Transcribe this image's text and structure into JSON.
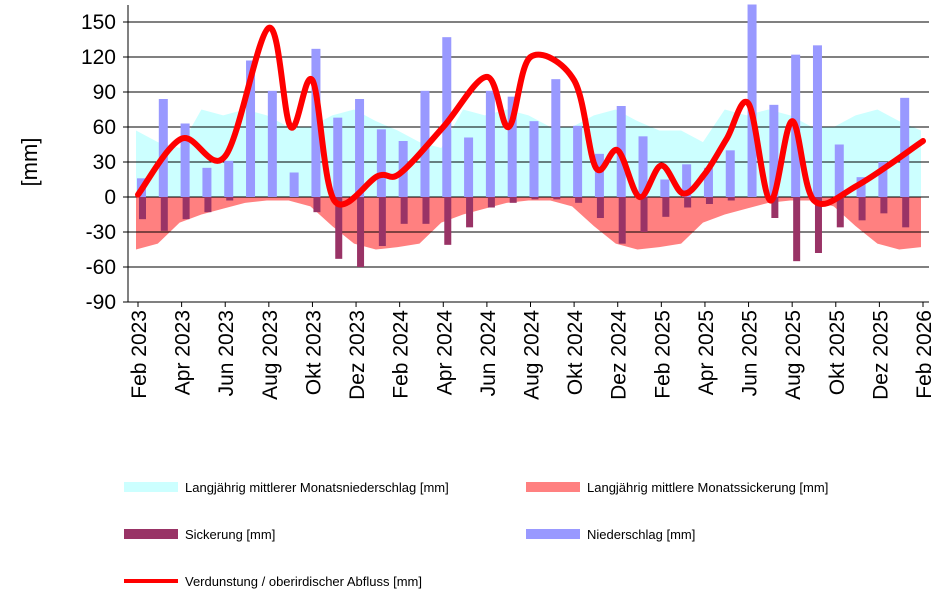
{
  "chart_data": {
    "type": "bar",
    "title": "",
    "xlabel": "",
    "ylabel": "[mm]",
    "ylim": [
      -90,
      165
    ],
    "yticks": [
      150,
      120,
      90,
      60,
      30,
      0,
      -30,
      -60,
      -90
    ],
    "grid": true,
    "legend_position": "bottom",
    "tick_labels": [
      "Feb 2023",
      "Apr 2023",
      "Jun 2023",
      "Aug 2023",
      "Okt 2023",
      "Dez 2023",
      "Feb 2024",
      "Apr 2024",
      "Jun 2024",
      "Aug 2024",
      "Okt 2024",
      "Dez 2024",
      "Feb 2025",
      "Apr 2025",
      "Jun 2025",
      "Aug 2025",
      "Okt 2025",
      "Dez 2025",
      "Feb 2026"
    ],
    "months": [
      "2023-02",
      "2023-03",
      "2023-04",
      "2023-05",
      "2023-06",
      "2023-07",
      "2023-08",
      "2023-09",
      "2023-10",
      "2023-11",
      "2023-12",
      "2024-01",
      "2024-02",
      "2024-03",
      "2024-04",
      "2024-05",
      "2024-06",
      "2024-07",
      "2024-08",
      "2024-09",
      "2024-10",
      "2024-11",
      "2024-12",
      "2025-01",
      "2025-02",
      "2025-03",
      "2025-04",
      "2025-05",
      "2025-06",
      "2025-07",
      "2025-08",
      "2025-09",
      "2025-10",
      "2025-11",
      "2025-12",
      "2026-01",
      "2026-02"
    ],
    "series": [
      {
        "name": "Langjährig mittlerer Monatsniederschlag [mm]",
        "kind": "area",
        "color": "#ccffff",
        "values": [
          57,
          47,
          42,
          75,
          70,
          75,
          70,
          60,
          60,
          70,
          75,
          65,
          57,
          47,
          42,
          75,
          70,
          75,
          70,
          60,
          60,
          70,
          75,
          65,
          57,
          57,
          47,
          75,
          70,
          75,
          70,
          60,
          60,
          70,
          75,
          65,
          57
        ]
      },
      {
        "name": "Langjährig mittlere Monatssickerung [mm]",
        "kind": "area",
        "color": "#ff8080",
        "values": [
          -45,
          -40,
          -22,
          -15,
          -10,
          -5,
          -3,
          -3,
          -8,
          -25,
          -40,
          -45,
          -43,
          -40,
          -22,
          -15,
          -10,
          -5,
          -3,
          -3,
          -8,
          -25,
          -40,
          -45,
          -43,
          -40,
          -22,
          -15,
          -10,
          -5,
          -3,
          -3,
          -8,
          -25,
          -40,
          -45,
          -43
        ]
      },
      {
        "name": "Sickerung [mm]",
        "kind": "bar",
        "color": "#993366",
        "values": [
          -19,
          -29,
          -19,
          -13,
          -3,
          0,
          0,
          0,
          -13,
          -53,
          -60,
          -42,
          -23,
          -23,
          -41,
          -26,
          -9,
          -5,
          -2,
          -2,
          -5,
          -18,
          -40,
          -30,
          -17,
          -9,
          -6,
          -3,
          0,
          -18,
          -55,
          -48,
          -26,
          -20,
          -14,
          -26,
          0
        ]
      },
      {
        "name": "Niederschlag [mm]",
        "kind": "bar",
        "color": "#9999ff",
        "values": [
          16,
          84,
          63,
          25,
          31,
          117,
          91,
          21,
          127,
          68,
          84,
          58,
          48,
          91,
          137,
          51,
          91,
          86,
          65,
          101,
          61,
          37,
          78,
          52,
          15,
          28,
          25,
          40,
          165,
          79,
          122,
          130,
          45,
          17,
          30,
          85,
          0
        ]
      },
      {
        "name": "Verdunstung / oberirdischer Abfluss [mm]",
        "kind": "line",
        "color": "#ff0000",
        "values": [
          2,
          50,
          35,
          145,
          60,
          100,
          -3,
          18,
          20,
          60,
          103,
          60,
          120,
          100,
          25,
          40,
          0,
          27,
          3,
          20,
          50,
          80,
          -3,
          65,
          -3,
          10,
          48
        ]
      }
    ],
    "line_x_months": [
      0,
      2,
      4,
      6,
      7,
      8,
      9,
      11,
      12,
      14,
      16,
      17,
      18,
      20,
      21,
      22,
      23,
      24,
      25,
      26,
      27,
      28,
      29,
      30,
      31,
      33,
      36
    ]
  },
  "legend": {
    "items": [
      {
        "label": "Langjährig mittlerer Monatsniederschlag [mm]",
        "color": "#ccffff"
      },
      {
        "label": "Langjährig mittlere Monatssickerung [mm]",
        "color": "#ff8080"
      },
      {
        "label": "Sickerung [mm]",
        "color": "#993366"
      },
      {
        "label": "Niederschlag [mm]",
        "color": "#9999ff"
      },
      {
        "label": "Verdunstung / oberirdischer Abfluss [mm]",
        "color": "#ff0000"
      }
    ]
  }
}
